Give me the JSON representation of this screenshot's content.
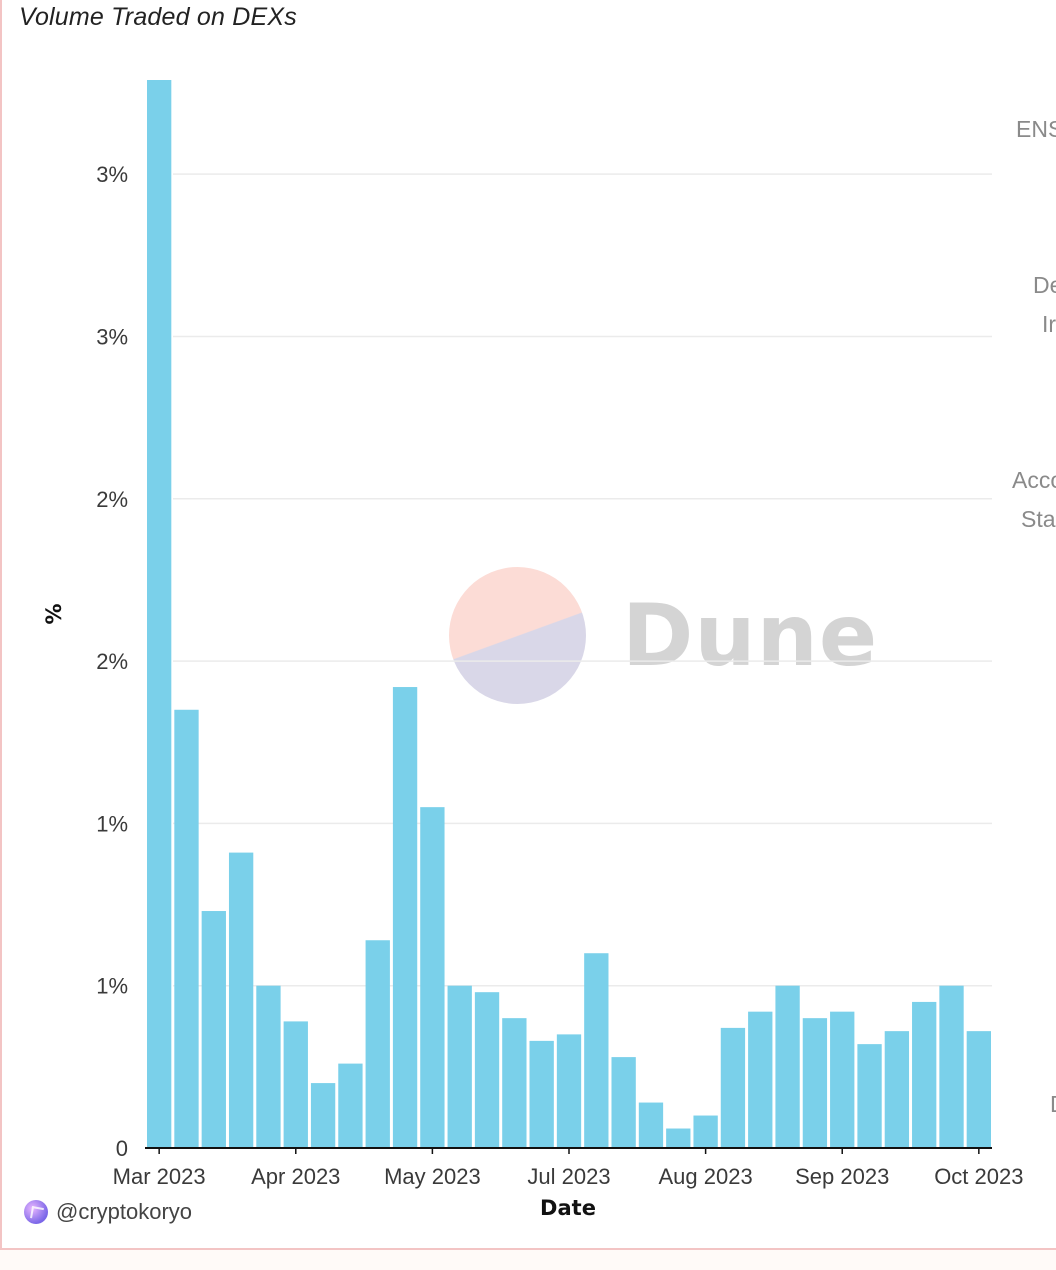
{
  "chart_data": {
    "type": "bar",
    "title": "Volume Traded on DEXs",
    "xlabel": "Date",
    "ylabel": "%",
    "ylim": [
      0,
      3.3
    ],
    "y_ticks": [
      {
        "value": 0,
        "label": "0"
      },
      {
        "value": 0.5,
        "label": "1%"
      },
      {
        "value": 1.0,
        "label": "1%"
      },
      {
        "value": 1.5,
        "label": "2%"
      },
      {
        "value": 2.0,
        "label": "2%"
      },
      {
        "value": 2.5,
        "label": "3%"
      },
      {
        "value": 3.0,
        "label": "3%"
      }
    ],
    "x_ticks": [
      {
        "index": 0,
        "label": "Mar 2023"
      },
      {
        "index": 5,
        "label": "Apr 2023"
      },
      {
        "index": 10,
        "label": "May 2023"
      },
      {
        "index": 15,
        "label": "Jul 2023"
      },
      {
        "index": 20,
        "label": "Aug 2023"
      },
      {
        "index": 25,
        "label": "Sep 2023"
      },
      {
        "index": 30,
        "label": "Oct 2023"
      }
    ],
    "values": [
      3.29,
      1.35,
      0.73,
      0.91,
      0.5,
      0.39,
      0.2,
      0.26,
      0.64,
      1.42,
      1.05,
      0.5,
      0.48,
      0.4,
      0.33,
      0.35,
      0.6,
      0.28,
      0.14,
      0.06,
      0.1,
      0.37,
      0.42,
      0.5,
      0.4,
      0.42,
      0.32,
      0.36,
      0.45,
      0.5,
      0.36
    ],
    "grid": true,
    "legend": "none",
    "bar_color": "#7ad0ea"
  },
  "watermark": {
    "text": "Dune"
  },
  "credit": {
    "handle": "@cryptokoryo"
  },
  "side_labels": [
    "ENS",
    "De",
    "Ir",
    "Acco",
    "Sta",
    "D"
  ]
}
